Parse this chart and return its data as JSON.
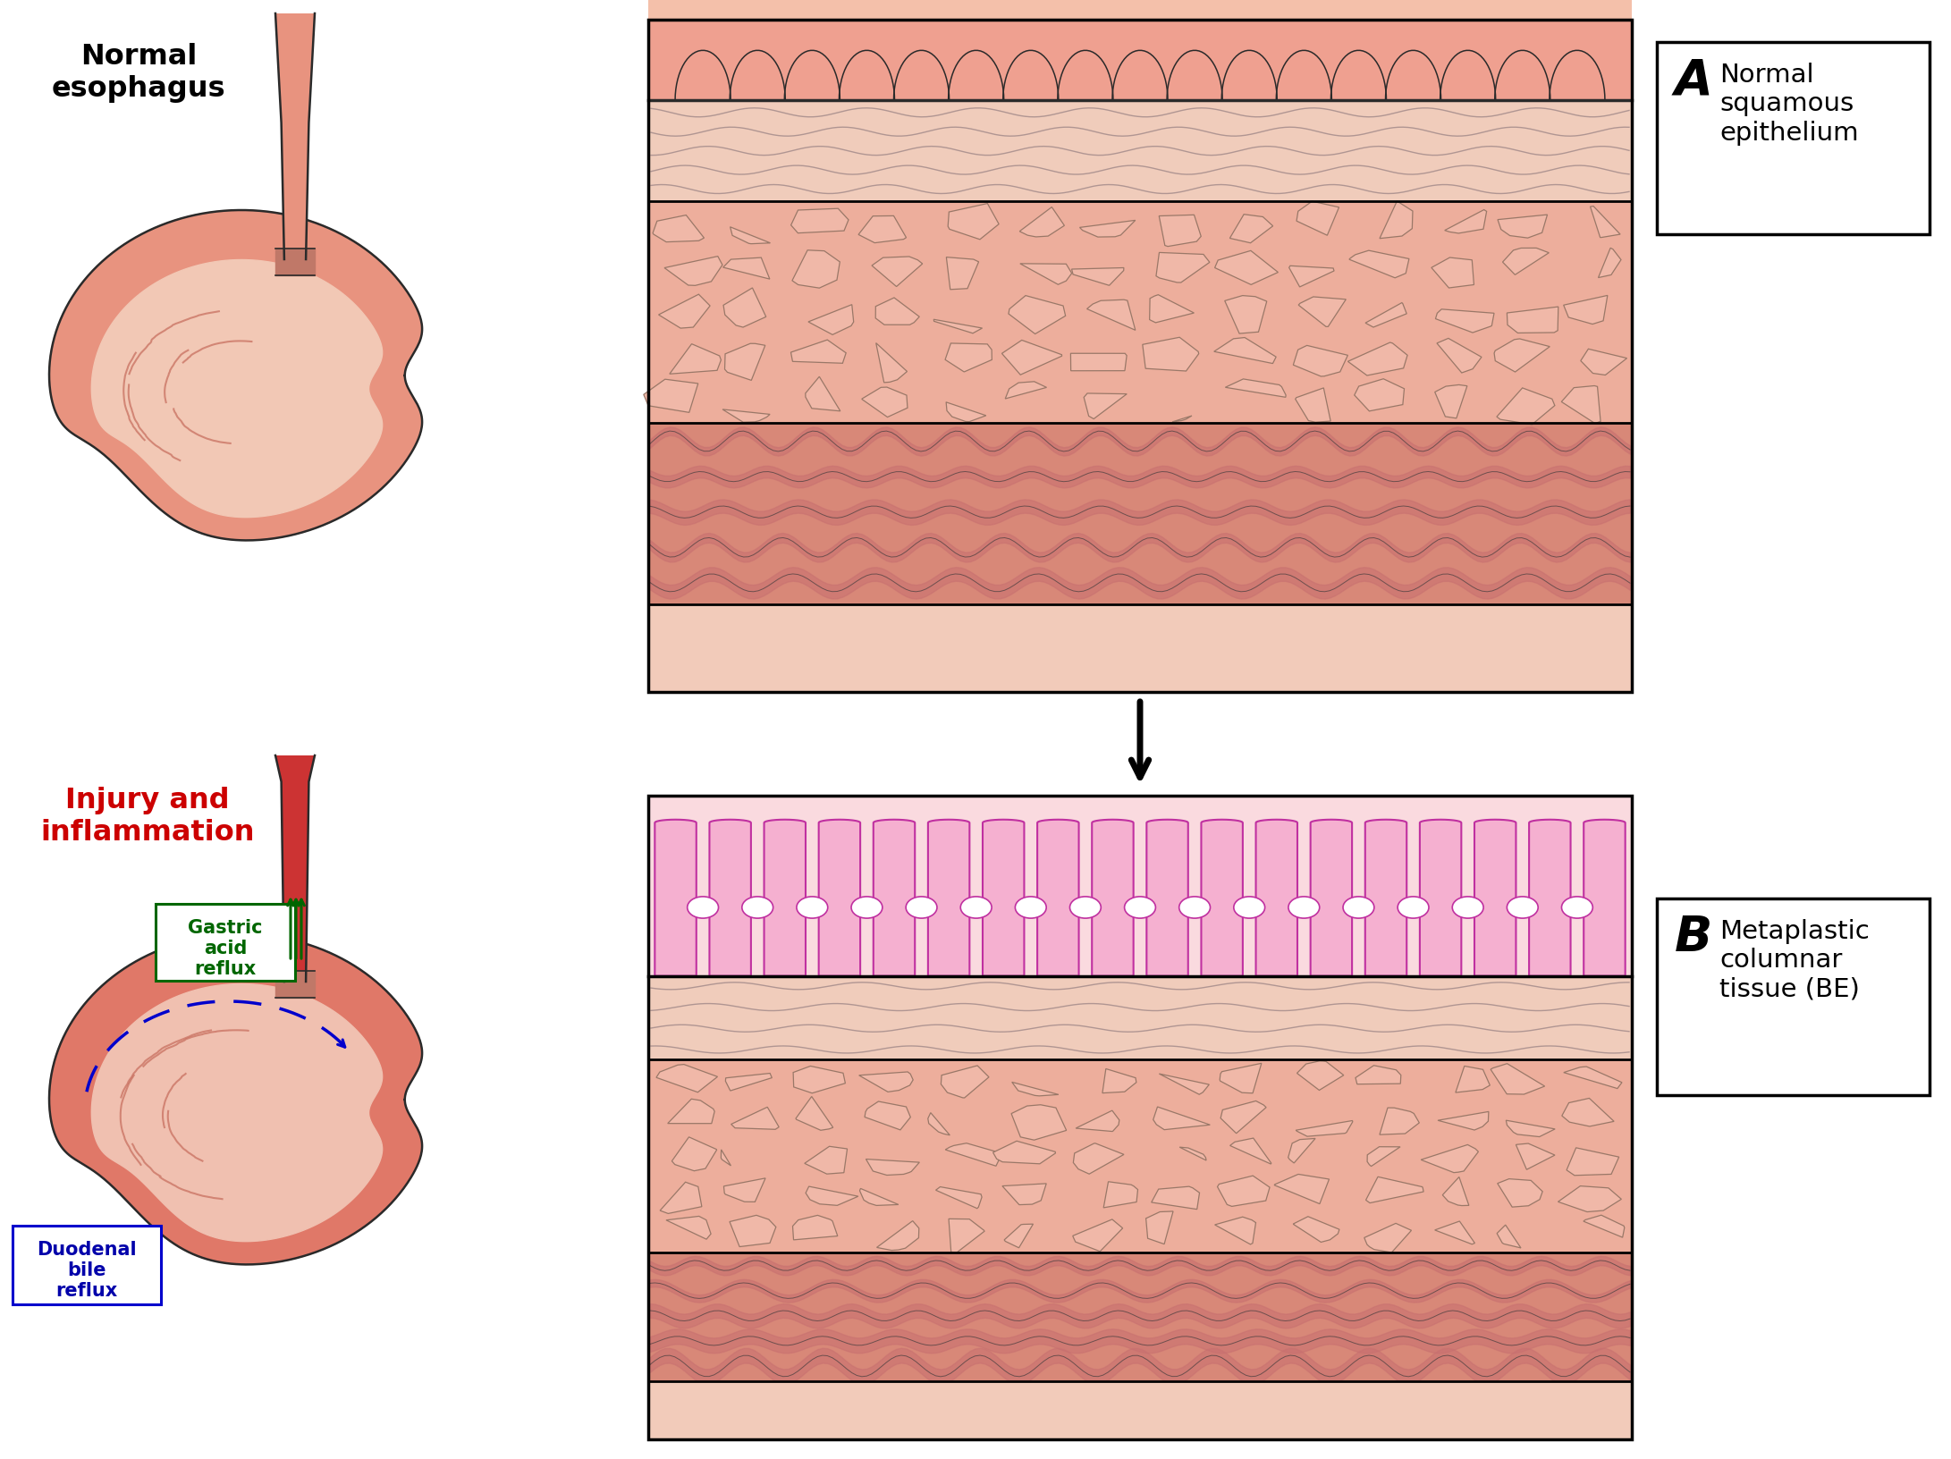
{
  "bg_color": "#ffffff",
  "title_A": "Normal\nsquamous\nepithelium",
  "title_B": "Metaplastic\ncolumnar\ntissue (BE)",
  "label_normal": "Normal\nesophagus",
  "label_injury": "Injury and\ninflammation",
  "label_gastric": "Gastric\nacid\nreflux",
  "label_duodenal": "Duodenal\nbile\nreflux",
  "color_salmon": "#D96B5A",
  "color_light_salmon": "#E8927E",
  "color_pale_pink": "#F2C5B2",
  "color_very_pale": "#F8DDD5",
  "color_outer_peach": "#F5D0BB",
  "color_dark_outline": "#2A2A2A",
  "color_medium_outline": "#777777",
  "color_magenta_fill": "#F5A0CC",
  "color_magenta_edge": "#C03090",
  "color_pale_magenta_bg": "#FBD8EE",
  "color_squamous_fill": "#F0B8A5",
  "color_squamous_edge": "#B08878",
  "color_muscle_fill": "#D98080",
  "color_muscle_dark": "#C06060",
  "color_wavy_line": "#A08888",
  "color_red_label": "#CC0000",
  "color_green": "#006600",
  "color_blue": "#0000AA",
  "color_layer1_bg": "#EFA090",
  "color_layer1_top": "#F0B098",
  "color_layer2_bg": "#F0CCBB",
  "color_layer3_bg": "#EDAE9C",
  "color_layer4_bg": "#D88878",
  "color_layer5_bg": "#F2CBBA"
}
